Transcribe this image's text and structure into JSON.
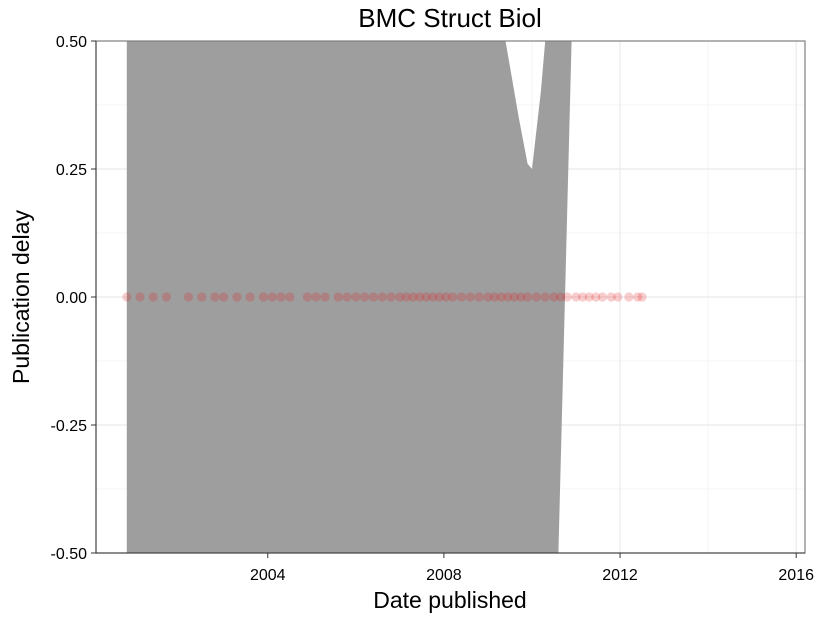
{
  "chart_data": {
    "type": "scatter",
    "title": "BMC Struct Biol",
    "xlabel": "Date published",
    "ylabel": "Publication delay",
    "xlim": [
      2000.1,
      2016.2
    ],
    "ylim": [
      -0.5,
      0.5
    ],
    "x_ticks": [
      2004,
      2008,
      2012,
      2016
    ],
    "x_tick_labels": [
      "2004",
      "2008",
      "2012",
      "2016"
    ],
    "y_ticks": [
      -0.5,
      -0.25,
      0,
      0.25,
      0.5
    ],
    "y_tick_labels": [
      "-0.50",
      "-0.25",
      "0.00",
      "0.25",
      "0.50"
    ],
    "grid": true,
    "point_color": "#e41a1c",
    "band_color": "#999999",
    "points": [
      {
        "x": 2000.8,
        "y": 0
      },
      {
        "x": 2001.1,
        "y": 0
      },
      {
        "x": 2001.4,
        "y": 0
      },
      {
        "x": 2001.7,
        "y": 0
      },
      {
        "x": 2002.2,
        "y": 0
      },
      {
        "x": 2002.5,
        "y": 0
      },
      {
        "x": 2002.8,
        "y": 0
      },
      {
        "x": 2003.0,
        "y": 0
      },
      {
        "x": 2003.3,
        "y": 0
      },
      {
        "x": 2003.6,
        "y": 0
      },
      {
        "x": 2003.9,
        "y": 0
      },
      {
        "x": 2004.1,
        "y": 0
      },
      {
        "x": 2004.3,
        "y": 0
      },
      {
        "x": 2004.5,
        "y": 0
      },
      {
        "x": 2004.9,
        "y": 0
      },
      {
        "x": 2005.1,
        "y": 0
      },
      {
        "x": 2005.3,
        "y": 0
      },
      {
        "x": 2005.6,
        "y": 0
      },
      {
        "x": 2005.8,
        "y": 0
      },
      {
        "x": 2006.0,
        "y": 0
      },
      {
        "x": 2006.2,
        "y": 0
      },
      {
        "x": 2006.4,
        "y": 0
      },
      {
        "x": 2006.6,
        "y": 0
      },
      {
        "x": 2006.8,
        "y": 0
      },
      {
        "x": 2007.0,
        "y": 0
      },
      {
        "x": 2007.15,
        "y": 0
      },
      {
        "x": 2007.3,
        "y": 0
      },
      {
        "x": 2007.45,
        "y": 0
      },
      {
        "x": 2007.6,
        "y": 0
      },
      {
        "x": 2007.75,
        "y": 0
      },
      {
        "x": 2007.9,
        "y": 0
      },
      {
        "x": 2008.05,
        "y": 0
      },
      {
        "x": 2008.2,
        "y": 0
      },
      {
        "x": 2008.4,
        "y": 0
      },
      {
        "x": 2008.6,
        "y": 0
      },
      {
        "x": 2008.8,
        "y": 0
      },
      {
        "x": 2009.0,
        "y": 0
      },
      {
        "x": 2009.15,
        "y": 0
      },
      {
        "x": 2009.3,
        "y": 0
      },
      {
        "x": 2009.45,
        "y": 0
      },
      {
        "x": 2009.6,
        "y": 0
      },
      {
        "x": 2009.75,
        "y": 0
      },
      {
        "x": 2009.9,
        "y": 0
      },
      {
        "x": 2010.1,
        "y": 0
      },
      {
        "x": 2010.3,
        "y": 0
      },
      {
        "x": 2010.5,
        "y": 0
      },
      {
        "x": 2010.65,
        "y": 0
      },
      {
        "x": 2010.8,
        "y": 0
      },
      {
        "x": 2011.0,
        "y": 0
      },
      {
        "x": 2011.15,
        "y": 0
      },
      {
        "x": 2011.3,
        "y": 0
      },
      {
        "x": 2011.45,
        "y": 0
      },
      {
        "x": 2011.6,
        "y": 0
      },
      {
        "x": 2011.8,
        "y": 0
      },
      {
        "x": 2011.95,
        "y": 0
      },
      {
        "x": 2012.2,
        "y": 0
      },
      {
        "x": 2012.4,
        "y": 0
      },
      {
        "x": 2012.5,
        "y": 0
      }
    ],
    "smooth_band": {
      "lower": [
        {
          "x": 2000.8,
          "y": -0.5
        },
        {
          "x": 2010.6,
          "y": -0.5
        },
        {
          "x": 2010.9,
          "y": 0.5
        }
      ],
      "upper": [
        {
          "x": 2000.8,
          "y": 0.5
        },
        {
          "x": 2009.4,
          "y": 0.5
        },
        {
          "x": 2009.7,
          "y": 0.35
        },
        {
          "x": 2009.9,
          "y": 0.26
        },
        {
          "x": 2010.0,
          "y": 0.25
        },
        {
          "x": 2010.2,
          "y": 0.4
        },
        {
          "x": 2010.3,
          "y": 0.5
        },
        {
          "x": 2011.2,
          "y": 0.5
        }
      ]
    }
  }
}
